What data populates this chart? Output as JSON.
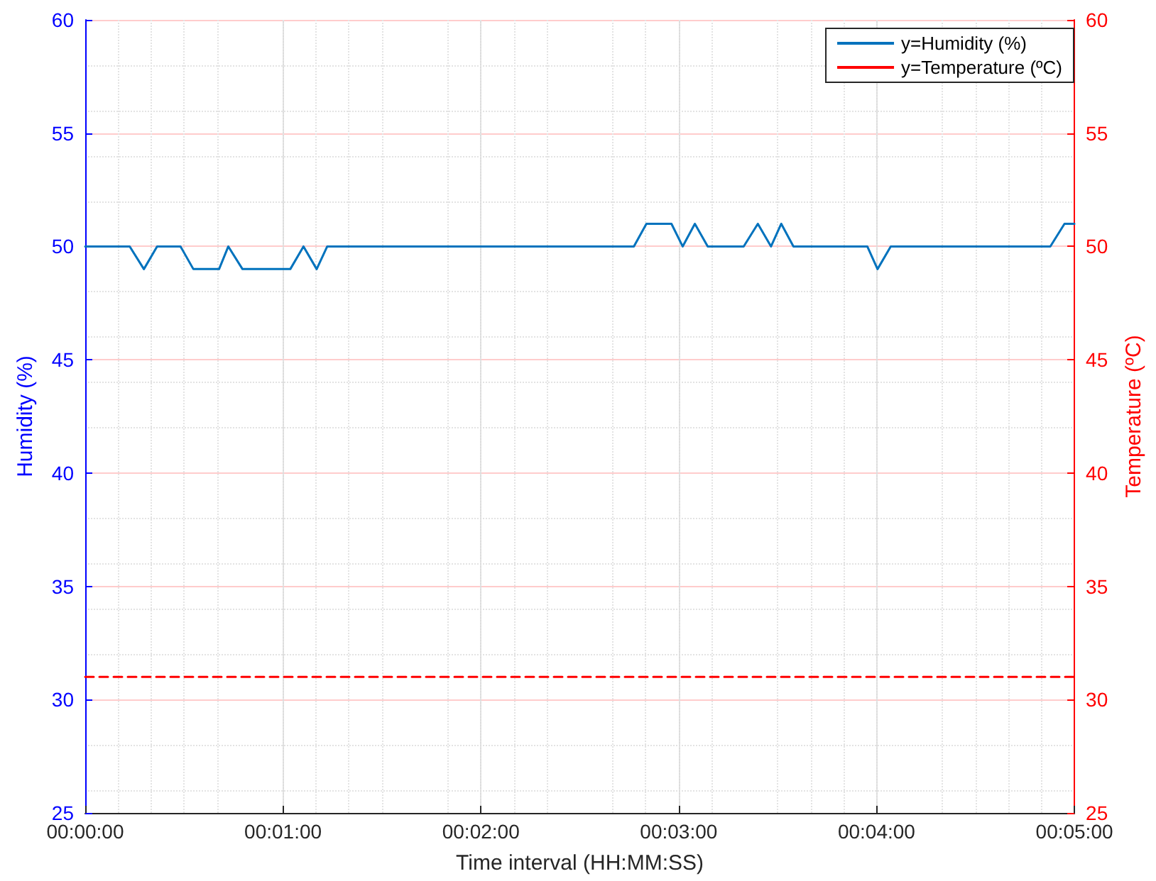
{
  "chart_data": {
    "type": "line",
    "xlabel": "Time interval (HH:MM:SS)",
    "ylabel": "Humidity (%)",
    "y2label": "Temperature (ºC)",
    "xlim": [
      0,
      300
    ],
    "xticks": [
      {
        "value": 0,
        "label": "00:00:00"
      },
      {
        "value": 60,
        "label": "00:01:00"
      },
      {
        "value": 120,
        "label": "00:02:00"
      },
      {
        "value": 180,
        "label": "00:03:00"
      },
      {
        "value": 240,
        "label": "00:04:00"
      },
      {
        "value": 300,
        "label": "00:05:00"
      }
    ],
    "ylim": [
      25,
      60
    ],
    "yticks": [
      25,
      30,
      35,
      40,
      45,
      50,
      55,
      60
    ],
    "y2lim": [
      25,
      60
    ],
    "y2ticks": [
      25,
      30,
      35,
      40,
      45,
      50,
      55,
      60
    ],
    "grid": true,
    "legend": "top right",
    "marker": "none",
    "series": [
      {
        "name": "y=Humidity (%)",
        "color": "#0072bd",
        "line_style": "solid",
        "x": [
          0,
          13.5,
          17.8,
          21.8,
          28.9,
          32.8,
          40.6,
          43.4,
          47.7,
          62.2,
          66.2,
          70.2,
          73.4,
          166.4,
          170.2,
          177.8,
          181.2,
          184.9,
          188.8,
          199.7,
          204,
          208,
          211.1,
          214.8,
          237.2,
          240.3,
          244.3,
          292.7,
          297,
          300
        ],
        "values": [
          50,
          50,
          49,
          50,
          50,
          49,
          49,
          50,
          49,
          49,
          50,
          49,
          50,
          50,
          51,
          51,
          50,
          51,
          50,
          50,
          51,
          50,
          51,
          50,
          50,
          49,
          50,
          50,
          51,
          51
        ]
      },
      {
        "name": "y=Temperature (ºC)",
        "color": "#ff0000",
        "line_style": "dashed",
        "axis": "y2",
        "x": [
          0,
          300
        ],
        "values": [
          31,
          31
        ]
      }
    ]
  }
}
